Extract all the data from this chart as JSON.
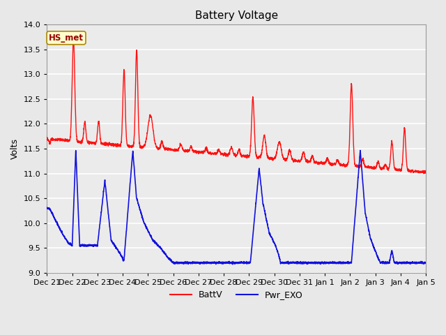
{
  "title": "Battery Voltage",
  "ylabel": "Volts",
  "ylim": [
    9.0,
    14.0
  ],
  "xlim": [
    0,
    15
  ],
  "yticks": [
    9.0,
    9.5,
    10.0,
    10.5,
    11.0,
    11.5,
    12.0,
    12.5,
    13.0,
    13.5,
    14.0
  ],
  "background_color": "#e8e8e8",
  "plot_bg_color": "#ebebeb",
  "grid_color": "#ffffff",
  "red_color": "#ff1111",
  "blue_color": "#1111dd",
  "title_fontsize": 11,
  "axis_label_fontsize": 9,
  "tick_fontsize": 8,
  "legend_labels": [
    "BattV",
    "Pwr_EXO"
  ],
  "annotation_text": "HS_met",
  "annotation_color": "#990000",
  "annotation_bg": "#ffffcc",
  "annotation_border": "#aa8800",
  "xtick_labels": [
    "Dec 21",
    "Dec 22",
    "Dec 23",
    "Dec 24",
    "Dec 25",
    "Dec 26",
    "Dec 27",
    "Dec 28",
    "Dec 29",
    "Dec 30",
    "Dec 31",
    "Jan 1",
    "Jan 2",
    "Jan 3",
    "Jan 4",
    "Jan 5"
  ],
  "xtick_positions": [
    0,
    1,
    2,
    3,
    4,
    5,
    6,
    7,
    8,
    9,
    10,
    11,
    12,
    13,
    14,
    15
  ]
}
